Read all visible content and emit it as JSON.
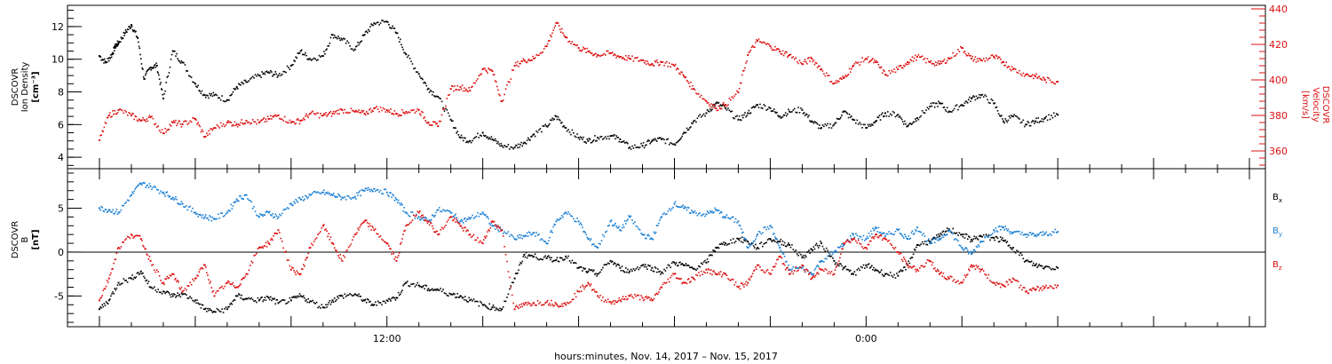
{
  "chart_data": [
    {
      "type": "scatter",
      "panel": "top",
      "left_axis": {
        "label_lines": [
          "DSCOVR",
          "Ion Density"
        ],
        "unit": "[cm⁻³]",
        "ylim": [
          3.3,
          13.3
        ],
        "ticks": [
          "4",
          "6",
          "8",
          "10",
          "12"
        ],
        "color": "#000000"
      },
      "right_axis": {
        "label_lines": [
          "DSCOVR",
          "Velocity"
        ],
        "unit": "[km/s]",
        "ylim": [
          350,
          442
        ],
        "ticks": [
          "360",
          "380",
          "400",
          "420",
          "440"
        ],
        "color": "#dd1111"
      },
      "series": [
        {
          "key": "density",
          "axis": "left",
          "color": "#000000",
          "x": [
            0,
            0.2,
            0.4,
            0.5,
            0.6,
            0.8,
            1.0,
            1.2,
            1.4,
            1.6,
            1.8,
            2.0,
            2.3,
            2.6,
            3.0,
            3.3,
            3.6,
            4.0,
            4.3,
            4.6,
            5.0,
            5.3,
            5.6,
            6.0,
            6.3,
            6.6,
            7.0,
            7.3,
            7.6,
            8.0,
            8.3,
            8.6,
            9.0,
            9.3,
            9.6,
            10.0,
            10.3,
            10.6,
            11.0,
            11.3,
            11.6,
            12.0,
            12.3,
            12.6,
            13.0,
            13.3,
            13.6,
            14.0,
            14.3,
            14.6,
            15.0,
            15.3,
            15.6,
            16.0,
            16.3,
            16.6,
            17.0,
            17.3,
            17.6,
            18.0,
            18.3,
            18.6,
            19.0,
            19.3,
            19.6,
            20.0,
            20.3,
            20.6,
            21.0,
            21.3,
            21.6,
            22.0,
            22.3,
            22.6,
            23.0,
            23.3,
            23.6,
            24.0,
            24.3,
            24.6,
            25.0,
            25.3,
            25.6,
            26.0,
            26.3,
            26.6,
            27.0,
            27.3,
            27.6,
            28.0,
            28.3,
            28.6,
            29.0,
            29.3,
            29.6,
            30.0
          ],
          "y": [
            10.2,
            9.8,
            10.3,
            10.8,
            11.0,
            11.6,
            12.1,
            11.3,
            8.8,
            9.5,
            9.6,
            7.6,
            10.5,
            9.8,
            8.5,
            7.8,
            7.8,
            7.5,
            8.3,
            8.6,
            9.0,
            9.2,
            9.0,
            9.6,
            10.5,
            10.0,
            10.2,
            11.5,
            11.2,
            10.6,
            11.5,
            12.2,
            12.3,
            11.6,
            10.3,
            9.1,
            8.2,
            7.7,
            6.3,
            5.2,
            5.0,
            5.5,
            5.1,
            4.7,
            4.6,
            4.9,
            5.4,
            5.9,
            6.5,
            5.8,
            5.2,
            5.0,
            5.2,
            5.3,
            5.1,
            4.6,
            4.7,
            5.0,
            5.1,
            4.8,
            5.5,
            6.2,
            6.7,
            7.3,
            7.0,
            6.3,
            6.7,
            7.2,
            7.0,
            6.5,
            6.8,
            6.9,
            6.2,
            5.8,
            6.0,
            6.8,
            6.3,
            5.8,
            6.2,
            6.7,
            6.6,
            5.9,
            6.4,
            7.1,
            7.3,
            6.8,
            7.2,
            7.6,
            7.8,
            7.3,
            6.2,
            6.5,
            6.0,
            6.2,
            6.4,
            6.6
          ]
        },
        {
          "key": "velocity",
          "axis": "right",
          "color": "#dd1111",
          "x": [
            0,
            0.3,
            0.6,
            1.0,
            1.3,
            1.6,
            2.0,
            2.3,
            2.6,
            3.0,
            3.3,
            3.6,
            4.0,
            4.3,
            4.6,
            5.0,
            5.3,
            5.6,
            6.0,
            6.3,
            6.6,
            7.0,
            7.3,
            7.6,
            8.0,
            8.3,
            8.6,
            9.0,
            9.3,
            9.6,
            10.0,
            10.3,
            10.6,
            11.0,
            11.3,
            11.6,
            12.0,
            12.3,
            12.6,
            13.0,
            13.3,
            13.6,
            14.0,
            14.3,
            14.6,
            15.0,
            15.3,
            15.6,
            16.0,
            16.3,
            16.6,
            17.0,
            17.3,
            17.6,
            18.0,
            18.3,
            18.6,
            19.0,
            19.3,
            19.6,
            20.0,
            20.3,
            20.6,
            21.0,
            21.3,
            21.6,
            22.0,
            22.3,
            22.6,
            23.0,
            23.3,
            23.6,
            24.0,
            24.3,
            24.6,
            25.0,
            25.3,
            25.6,
            26.0,
            26.3,
            26.6,
            27.0,
            27.3,
            27.6,
            28.0,
            28.3,
            28.6,
            29.0,
            29.3,
            29.6,
            30.0
          ],
          "y": [
            366,
            380,
            383,
            380,
            377,
            379,
            370,
            376,
            375,
            378,
            368,
            373,
            376,
            375,
            377,
            376,
            378,
            380,
            376,
            377,
            381,
            380,
            381,
            383,
            382,
            381,
            384,
            383,
            381,
            382,
            383,
            376,
            374,
            395,
            396,
            394,
            406,
            405,
            388,
            408,
            411,
            412,
            419,
            432,
            424,
            418,
            416,
            414,
            415,
            413,
            412,
            411,
            409,
            410,
            408,
            402,
            395,
            388,
            384,
            386,
            393,
            414,
            422,
            419,
            416,
            414,
            409,
            412,
            406,
            398,
            401,
            408,
            412,
            410,
            403,
            406,
            410,
            413,
            410,
            409,
            412,
            418,
            412,
            411,
            413,
            410,
            406,
            403,
            402,
            400,
            399
          ]
        }
      ]
    },
    {
      "type": "scatter",
      "panel": "bottom",
      "left_axis": {
        "label_lines": [
          "DSCOVR",
          "B"
        ],
        "unit": "[nT]",
        "ylim": [
          -8.5,
          9.5
        ],
        "ticks": [
          "-5",
          "0",
          "5"
        ],
        "color": "#000000"
      },
      "series": [
        {
          "key": "bx",
          "name": "B",
          "subscript": "x",
          "color": "#000000",
          "x": [
            0,
            0.3,
            0.6,
            1.0,
            1.3,
            1.6,
            2.0,
            2.3,
            2.6,
            3.0,
            3.3,
            3.6,
            4.0,
            4.3,
            4.6,
            5.0,
            5.3,
            5.6,
            6.0,
            6.3,
            6.6,
            7.0,
            7.3,
            7.6,
            8.0,
            8.3,
            8.6,
            9.0,
            9.3,
            9.6,
            10.0,
            10.3,
            10.6,
            11.0,
            11.3,
            11.6,
            12.0,
            12.3,
            12.6,
            13.0,
            13.3,
            13.6,
            14.0,
            14.3,
            14.6,
            15.0,
            15.3,
            15.6,
            16.0,
            16.3,
            16.6,
            17.0,
            17.3,
            17.6,
            18.0,
            18.3,
            18.6,
            19.0,
            19.3,
            19.6,
            20.0,
            20.3,
            20.6,
            21.0,
            21.3,
            21.6,
            22.0,
            22.3,
            22.6,
            23.0,
            23.3,
            23.6,
            24.0,
            24.3,
            24.6,
            25.0,
            25.3,
            25.6,
            26.0,
            26.3,
            26.6,
            27.0,
            27.3,
            27.6,
            28.0,
            28.3,
            28.6,
            29.0,
            29.3,
            29.6,
            30.0
          ],
          "y": [
            -6.5,
            -5.5,
            -3.5,
            -3.0,
            -2.2,
            -4.0,
            -4.5,
            -5.0,
            -4.8,
            -5.5,
            -6.5,
            -6.8,
            -6.5,
            -5.0,
            -5.3,
            -5.5,
            -5.2,
            -5.8,
            -5.5,
            -5.0,
            -5.6,
            -6.3,
            -5.5,
            -5.0,
            -4.8,
            -5.5,
            -6.0,
            -5.5,
            -5.2,
            -3.5,
            -3.8,
            -4.2,
            -4.3,
            -4.8,
            -5.0,
            -5.5,
            -6.0,
            -6.3,
            -6.5,
            -3.0,
            -0.3,
            -0.5,
            -0.7,
            -0.9,
            -0.5,
            -1.8,
            -2.2,
            -2.5,
            -1.0,
            -1.8,
            -2.2,
            -1.5,
            -1.8,
            -2.3,
            -1.2,
            -1.5,
            -1.9,
            -1.2,
            0.5,
            1.0,
            1.5,
            1.2,
            0.5,
            1.5,
            1.2,
            0.8,
            -0.6,
            0.3,
            1.0,
            -1.0,
            -1.8,
            -2.5,
            -1.5,
            -2.0,
            -2.5,
            -2.7,
            -1.5,
            0.8,
            1.2,
            1.8,
            2.6,
            2.0,
            1.4,
            1.8,
            1.6,
            1.3,
            0.5,
            -1.0,
            -1.5,
            -1.7,
            -1.8
          ]
        },
        {
          "key": "by",
          "name": "B",
          "subscript": "y",
          "color": "#1a7fd4",
          "x": [
            0,
            0.3,
            0.6,
            1.0,
            1.3,
            1.6,
            2.0,
            2.3,
            2.6,
            3.0,
            3.3,
            3.6,
            4.0,
            4.3,
            4.6,
            5.0,
            5.3,
            5.6,
            6.0,
            6.3,
            6.6,
            7.0,
            7.3,
            7.6,
            8.0,
            8.3,
            8.6,
            9.0,
            9.3,
            9.6,
            10.0,
            10.3,
            10.6,
            11.0,
            11.3,
            11.6,
            12.0,
            12.3,
            12.6,
            13.0,
            13.3,
            13.6,
            14.0,
            14.3,
            14.6,
            15.0,
            15.3,
            15.6,
            16.0,
            16.3,
            16.6,
            17.0,
            17.3,
            17.6,
            18.0,
            18.3,
            18.6,
            19.0,
            19.3,
            19.6,
            20.0,
            20.3,
            20.6,
            21.0,
            21.3,
            21.6,
            22.0,
            22.3,
            22.6,
            23.0,
            23.3,
            23.6,
            24.0,
            24.3,
            24.6,
            25.0,
            25.3,
            25.6,
            26.0,
            26.3,
            26.6,
            27.0,
            27.3,
            27.6,
            28.0,
            28.3,
            28.6,
            29.0,
            29.3,
            29.6,
            30.0
          ],
          "y": [
            5.0,
            4.8,
            4.5,
            6.5,
            7.8,
            7.5,
            6.8,
            6.2,
            5.5,
            4.5,
            4.0,
            3.8,
            4.5,
            6.0,
            6.5,
            4.0,
            4.5,
            4.0,
            5.5,
            6.0,
            6.5,
            6.8,
            6.5,
            6.2,
            6.3,
            7.0,
            7.2,
            6.8,
            6.0,
            4.5,
            4.0,
            3.5,
            4.8,
            4.5,
            3.5,
            3.8,
            4.5,
            3.0,
            2.5,
            1.5,
            1.8,
            2.2,
            1.0,
            3.5,
            4.5,
            3.5,
            1.5,
            0.5,
            3.5,
            2.5,
            4.0,
            2.0,
            1.5,
            4.0,
            5.5,
            5.0,
            4.5,
            4.3,
            4.8,
            4.0,
            3.5,
            0.5,
            2.0,
            3.0,
            0.5,
            -2.0,
            -1.8,
            -2.5,
            -1.0,
            0.0,
            0.8,
            2.0,
            1.5,
            2.8,
            1.8,
            2.5,
            1.5,
            2.8,
            1.0,
            1.5,
            2.5,
            0.5,
            -0.2,
            1.2,
            2.5,
            2.8,
            2.2,
            2.0,
            1.9,
            2.1,
            2.3
          ]
        },
        {
          "key": "bz",
          "name": "B",
          "subscript": "z",
          "color": "#dd1111",
          "x": [
            0,
            0.3,
            0.6,
            1.0,
            1.3,
            1.6,
            2.0,
            2.3,
            2.6,
            3.0,
            3.3,
            3.6,
            4.0,
            4.3,
            4.6,
            5.0,
            5.3,
            5.6,
            6.0,
            6.3,
            6.6,
            7.0,
            7.3,
            7.6,
            8.0,
            8.3,
            8.6,
            9.0,
            9.3,
            9.6,
            10.0,
            10.3,
            10.6,
            11.0,
            11.3,
            11.6,
            12.0,
            12.3,
            12.6,
            13.0,
            13.3,
            13.6,
            14.0,
            14.3,
            14.6,
            15.0,
            15.3,
            15.6,
            16.0,
            16.3,
            16.6,
            17.0,
            17.3,
            17.6,
            18.0,
            18.3,
            18.6,
            19.0,
            19.3,
            19.6,
            20.0,
            20.3,
            20.6,
            21.0,
            21.3,
            21.6,
            22.0,
            22.3,
            22.6,
            23.0,
            23.3,
            23.6,
            24.0,
            24.3,
            24.6,
            25.0,
            25.3,
            25.6,
            26.0,
            26.3,
            26.6,
            27.0,
            27.3,
            27.6,
            28.0,
            28.3,
            28.6,
            29.0,
            29.3,
            29.6,
            30.0
          ],
          "y": [
            -5.5,
            -3.0,
            0.5,
            2.0,
            1.5,
            -1.0,
            -3.5,
            -2.5,
            -4.5,
            -3.0,
            -1.5,
            -5.0,
            -3.5,
            -4.0,
            -2.5,
            0.5,
            1.0,
            2.5,
            -2.0,
            -2.5,
            0.5,
            3.0,
            1.0,
            -1.0,
            2.0,
            3.5,
            2.5,
            1.0,
            -1.0,
            3.0,
            4.5,
            3.5,
            2.0,
            4.0,
            3.0,
            2.0,
            1.0,
            3.5,
            2.5,
            -6.5,
            -6.0,
            -5.8,
            -5.7,
            -5.9,
            -6.0,
            -4.5,
            -3.5,
            -5.0,
            -5.7,
            -5.5,
            -5.0,
            -5.2,
            -5.5,
            -4.0,
            -2.5,
            -3.5,
            -3.0,
            -2.0,
            -2.5,
            -2.5,
            -4.0,
            -3.5,
            -1.5,
            -2.5,
            -0.5,
            -2.5,
            -1.5,
            -3.0,
            -2.0,
            -2.5,
            1.0,
            1.5,
            0.5,
            2.0,
            1.5,
            0.0,
            -1.5,
            -2.0,
            -1.0,
            -2.5,
            -3.0,
            -3.5,
            -1.5,
            -2.0,
            -3.5,
            -3.8,
            -3.0,
            -4.5,
            -4.3,
            -4.0,
            -3.8
          ]
        }
      ]
    }
  ],
  "x_axis": {
    "xlim": [
      -1.0,
      36.5
    ],
    "major_ticks": [
      {
        "x": 9.0,
        "label": "12:00"
      },
      {
        "x": 24.0,
        "label": "0:00"
      }
    ],
    "title": "hours:minutes, Nov. 14, 2017 – Nov. 15, 2017"
  },
  "zero_line": 0
}
